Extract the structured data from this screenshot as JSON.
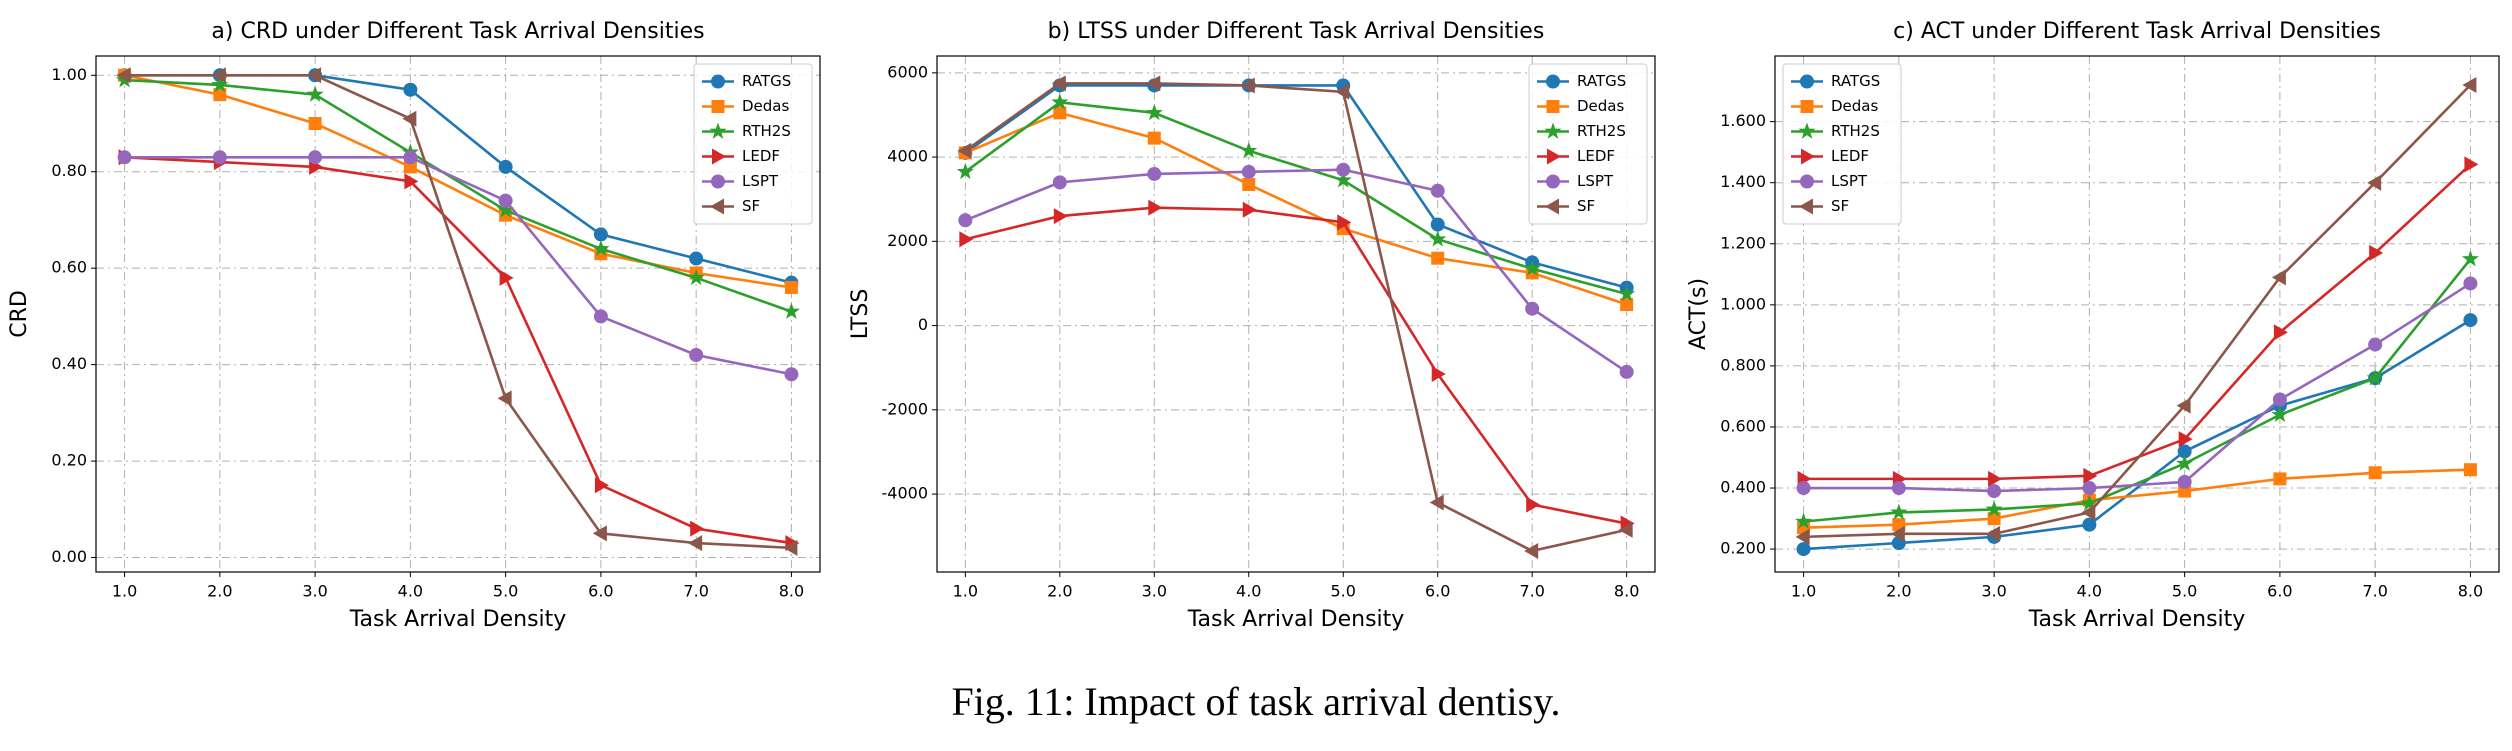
{
  "chart_data": [
    {
      "type": "line",
      "title": "a) CRD under Different Task Arrival Densities",
      "xlabel": "Task Arrival Density",
      "ylabel": "CRD",
      "x": [
        1,
        2,
        3,
        4,
        5,
        6,
        7,
        8
      ],
      "xlim": [
        0.7,
        8.3
      ],
      "xticks": [
        {
          "value": 1,
          "label": "1.0"
        },
        {
          "value": 2,
          "label": "2.0"
        },
        {
          "value": 3,
          "label": "3.0"
        },
        {
          "value": 4,
          "label": "4.0"
        },
        {
          "value": 5,
          "label": "5.0"
        },
        {
          "value": 6,
          "label": "6.0"
        },
        {
          "value": 7,
          "label": "7.0"
        },
        {
          "value": 8,
          "label": "8.0"
        }
      ],
      "ylim": [
        -0.03,
        1.04
      ],
      "yticks": [
        {
          "value": 0,
          "label": "0.00"
        },
        {
          "value": 0.2,
          "label": "0.20"
        },
        {
          "value": 0.4,
          "label": "0.40"
        },
        {
          "value": 0.6,
          "label": "0.60"
        },
        {
          "value": 0.8,
          "label": "0.80"
        },
        {
          "value": 1,
          "label": "1.00"
        }
      ],
      "grid": true,
      "legend": "upper right",
      "series": [
        {
          "name": "RATGS",
          "color": "#1f77b4",
          "marker": "o",
          "values": [
            1.0,
            1.0,
            1.0,
            0.97,
            0.81,
            0.67,
            0.62,
            0.57
          ]
        },
        {
          "name": "Dedas",
          "color": "#ff7f0e",
          "marker": "s",
          "values": [
            1.0,
            0.96,
            0.9,
            0.81,
            0.71,
            0.63,
            0.59,
            0.56
          ]
        },
        {
          "name": "RTH2S",
          "color": "#2ca02c",
          "marker": "*",
          "values": [
            0.99,
            0.98,
            0.96,
            0.84,
            0.72,
            0.64,
            0.58,
            0.51
          ]
        },
        {
          "name": "LEDF",
          "color": "#d62728",
          "marker": ">",
          "values": [
            0.83,
            0.82,
            0.81,
            0.78,
            0.58,
            0.15,
            0.06,
            0.03
          ]
        },
        {
          "name": "LSPT",
          "color": "#9467bd",
          "marker": "o",
          "values": [
            0.83,
            0.83,
            0.83,
            0.83,
            0.74,
            0.5,
            0.42,
            0.38
          ]
        },
        {
          "name": "SF",
          "color": "#8c564b",
          "marker": "<",
          "values": [
            1.0,
            1.0,
            1.0,
            0.91,
            0.33,
            0.05,
            0.03,
            0.02
          ]
        }
      ]
    },
    {
      "type": "line",
      "title": "b) LTSS under Different Task Arrival Densities",
      "xlabel": "Task Arrival Density",
      "ylabel": "LTSS",
      "x": [
        1,
        2,
        3,
        4,
        5,
        6,
        7,
        8
      ],
      "xlim": [
        0.7,
        8.3
      ],
      "xticks": [
        {
          "value": 1,
          "label": "1.0"
        },
        {
          "value": 2,
          "label": "2.0"
        },
        {
          "value": 3,
          "label": "3.0"
        },
        {
          "value": 4,
          "label": "4.0"
        },
        {
          "value": 5,
          "label": "5.0"
        },
        {
          "value": 6,
          "label": "6.0"
        },
        {
          "value": 7,
          "label": "7.0"
        },
        {
          "value": 8,
          "label": "8.0"
        }
      ],
      "ylim": [
        -5850,
        6400
      ],
      "yticks": [
        -4000,
        -2000,
        0,
        2000,
        4000,
        6000
      ],
      "grid": true,
      "legend": "upper right",
      "series": [
        {
          "name": "RATGS",
          "color": "#1f77b4",
          "marker": "o",
          "values": [
            4100,
            5700,
            5700,
            5700,
            5700,
            2400,
            1500,
            900
          ]
        },
        {
          "name": "Dedas",
          "color": "#ff7f0e",
          "marker": "s",
          "values": [
            4100,
            5050,
            4450,
            3350,
            2300,
            1600,
            1250,
            500
          ]
        },
        {
          "name": "RTH2S",
          "color": "#2ca02c",
          "marker": "*",
          "values": [
            3650,
            5300,
            5050,
            4150,
            3450,
            2050,
            1350,
            750
          ]
        },
        {
          "name": "LEDF",
          "color": "#d62728",
          "marker": ">",
          "values": [
            2050,
            2600,
            2800,
            2750,
            2450,
            -1150,
            -4250,
            -4700
          ]
        },
        {
          "name": "LSPT",
          "color": "#9467bd",
          "marker": "o",
          "values": [
            2500,
            3400,
            3600,
            3650,
            3700,
            3200,
            400,
            -1100
          ]
        },
        {
          "name": "SF",
          "color": "#8c564b",
          "marker": "<",
          "values": [
            4150,
            5750,
            5750,
            5700,
            5550,
            -4200,
            -5350,
            -4850
          ]
        }
      ]
    },
    {
      "type": "line",
      "title": "c) ACT under Different Task Arrival Densities",
      "xlabel": "Task Arrival Density",
      "ylabel": "ACT(s)",
      "x": [
        1,
        2,
        3,
        4,
        5,
        6,
        7,
        8
      ],
      "xlim": [
        0.7,
        8.3
      ],
      "xticks": [
        {
          "value": 1,
          "label": "1.0"
        },
        {
          "value": 2,
          "label": "2.0"
        },
        {
          "value": 3,
          "label": "3.0"
        },
        {
          "value": 4,
          "label": "4.0"
        },
        {
          "value": 5,
          "label": "5.0"
        },
        {
          "value": 6,
          "label": "6.0"
        },
        {
          "value": 7,
          "label": "7.0"
        },
        {
          "value": 8,
          "label": "8.0"
        }
      ],
      "ylim": [
        0.125,
        1.815
      ],
      "yticks": [
        {
          "value": 0.2,
          "label": "0.200"
        },
        {
          "value": 0.4,
          "label": "0.400"
        },
        {
          "value": 0.6,
          "label": "0.600"
        },
        {
          "value": 0.8,
          "label": "0.800"
        },
        {
          "value": 1,
          "label": "1.000"
        },
        {
          "value": 1.2,
          "label": "1.200"
        },
        {
          "value": 1.4,
          "label": "1.400"
        },
        {
          "value": 1.6,
          "label": "1.600"
        }
      ],
      "grid": true,
      "legend": "upper left",
      "series": [
        {
          "name": "RATGS",
          "color": "#1f77b4",
          "marker": "o",
          "values": [
            0.2,
            0.22,
            0.24,
            0.28,
            0.52,
            0.67,
            0.76,
            0.95
          ]
        },
        {
          "name": "Dedas",
          "color": "#ff7f0e",
          "marker": "s",
          "values": [
            0.27,
            0.28,
            0.3,
            0.36,
            0.39,
            0.43,
            0.45,
            0.46
          ]
        },
        {
          "name": "RTH2S",
          "color": "#2ca02c",
          "marker": "*",
          "values": [
            0.29,
            0.32,
            0.33,
            0.35,
            0.48,
            0.64,
            0.76,
            1.15
          ]
        },
        {
          "name": "LEDF",
          "color": "#d62728",
          "marker": ">",
          "values": [
            0.43,
            0.43,
            0.43,
            0.44,
            0.56,
            0.91,
            1.17,
            1.46
          ]
        },
        {
          "name": "LSPT",
          "color": "#9467bd",
          "marker": "o",
          "values": [
            0.4,
            0.4,
            0.39,
            0.4,
            0.42,
            0.69,
            0.87,
            1.07
          ]
        },
        {
          "name": "SF",
          "color": "#8c564b",
          "marker": "<",
          "values": [
            0.24,
            0.25,
            0.25,
            0.32,
            0.67,
            1.09,
            1.4,
            1.72
          ]
        }
      ]
    }
  ],
  "caption": "Fig. 11: Impact of task arrival dentisy."
}
